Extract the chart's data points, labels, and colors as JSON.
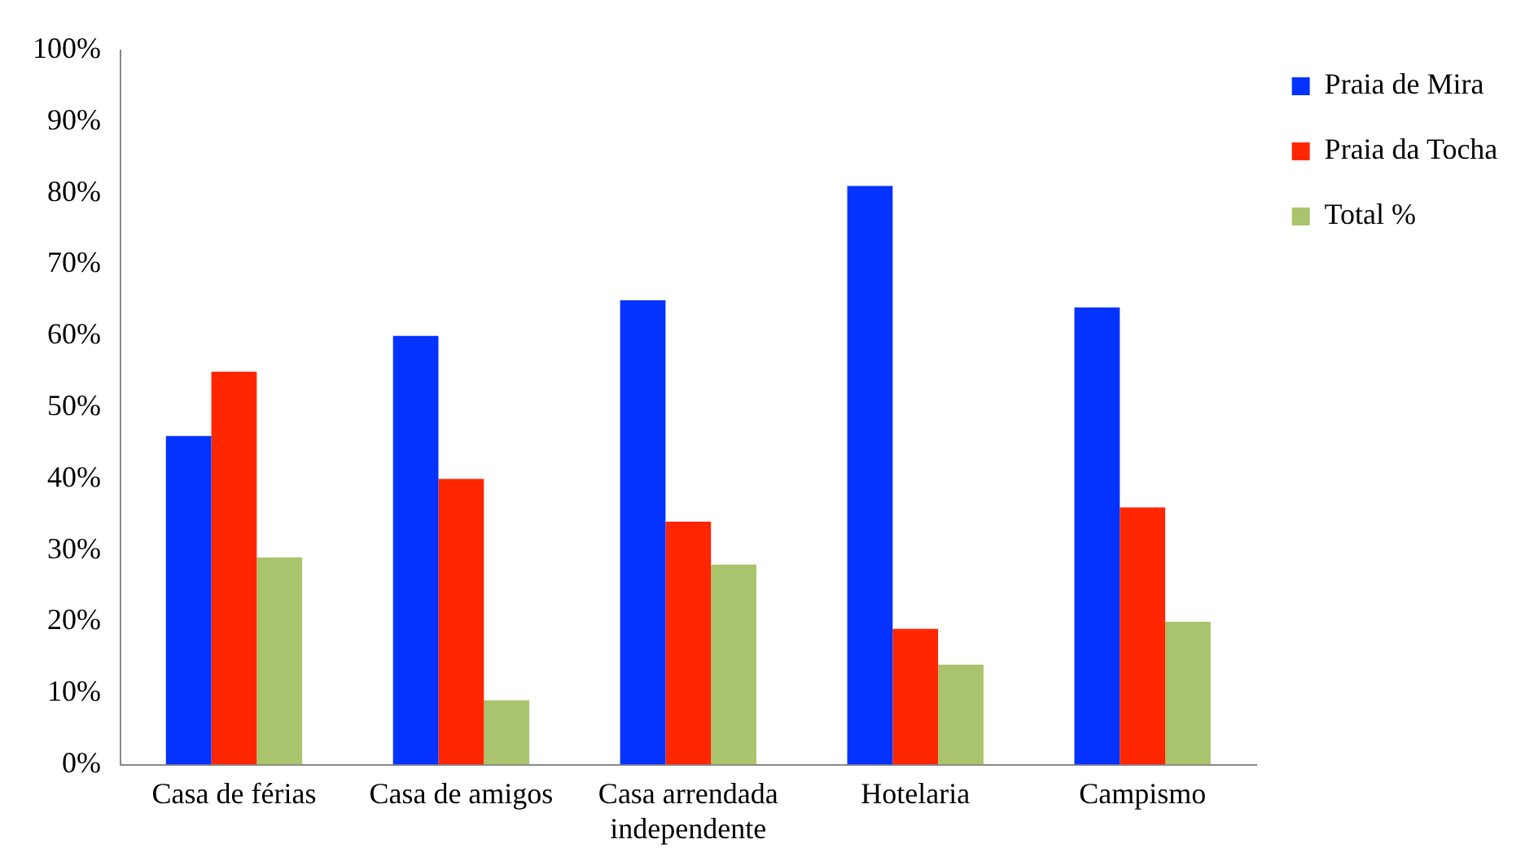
{
  "chart_data": {
    "type": "bar",
    "categories": [
      "Casa de férias",
      "Casa de amigos",
      "Casa arrendada independente",
      "Hotelaria",
      "Campismo"
    ],
    "series": [
      {
        "name": "Praia de Mira",
        "color": "#0433ff",
        "values": [
          46,
          60,
          65,
          81,
          64
        ]
      },
      {
        "name": "Praia da Tocha",
        "color": "#ff2600",
        "values": [
          55,
          40,
          34,
          19,
          36
        ]
      },
      {
        "name": "Total %",
        "color": "#a9c46c",
        "values": [
          29,
          9,
          28,
          14,
          20
        ]
      }
    ],
    "ylim": [
      0,
      100
    ],
    "yticks": [
      {
        "value": 0,
        "label": "0%"
      },
      {
        "value": 10,
        "label": "10%"
      },
      {
        "value": 20,
        "label": "20%"
      },
      {
        "value": 30,
        "label": "30%"
      },
      {
        "value": 40,
        "label": "40%"
      },
      {
        "value": 50,
        "label": "50%"
      },
      {
        "value": 60,
        "label": "60%"
      },
      {
        "value": 70,
        "label": "70%"
      },
      {
        "value": 80,
        "label": "80%"
      },
      {
        "value": 90,
        "label": "90%"
      },
      {
        "value": 100,
        "label": "100%"
      }
    ],
    "grid": false,
    "legend": "top right"
  }
}
